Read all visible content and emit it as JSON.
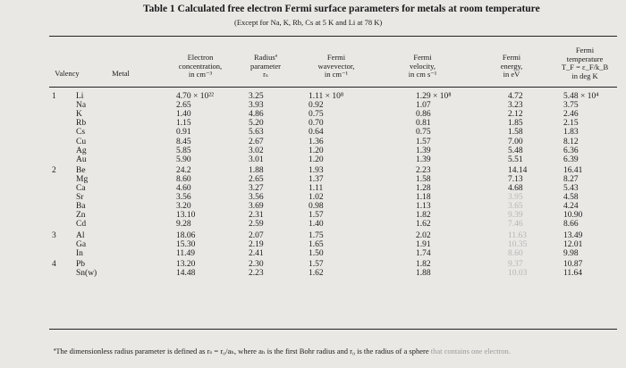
{
  "table": {
    "title": "Table 1  Calculated free electron Fermi surface parameters for metals at room temperature",
    "subtitle": "(Except for Na, K, Rb, Cs at 5 K and Li at 78 K)",
    "headers": [
      {
        "id": "valency",
        "lines": [
          "Valency"
        ]
      },
      {
        "id": "metal",
        "lines": [
          "Metal"
        ]
      },
      {
        "id": "conc",
        "lines": [
          "Electron",
          "concentration,",
          "in cm⁻³"
        ]
      },
      {
        "id": "radius",
        "lines": [
          "Radiusª",
          "parameter",
          "rₛ"
        ]
      },
      {
        "id": "wavevector",
        "lines": [
          "Fermi",
          "wavevector,",
          "in cm⁻¹"
        ]
      },
      {
        "id": "velocity",
        "lines": [
          "Fermi",
          "velocity,",
          "in cm s⁻¹"
        ]
      },
      {
        "id": "energy",
        "lines": [
          "Fermi",
          "energy,",
          "in eV"
        ]
      },
      {
        "id": "temp",
        "lines": [
          "Fermi",
          "temperature",
          "T_F = ε_F/k_B",
          "in deg K"
        ]
      }
    ],
    "groups": [
      {
        "valency": "1",
        "rows": [
          [
            "Li",
            "4.70 × 10²²",
            "3.25",
            "1.11 × 10⁸",
            "1.29 × 10⁸",
            "4.72",
            "5.48 × 10⁴"
          ],
          [
            "Na",
            "2.65",
            "3.93",
            "0.92",
            "1.07",
            "3.23",
            "3.75"
          ],
          [
            "K",
            "1.40",
            "4.86",
            "0.75",
            "0.86",
            "2.12",
            "2.46"
          ],
          [
            "Rb",
            "1.15",
            "5.20",
            "0.70",
            "0.81",
            "1.85",
            "2.15"
          ],
          [
            "Cs",
            "0.91",
            "5.63",
            "0.64",
            "0.75",
            "1.58",
            "1.83"
          ],
          [
            "Cu",
            "8.45",
            "2.67",
            "1.36",
            "1.57",
            "7.00",
            "8.12"
          ],
          [
            "Ag",
            "5.85",
            "3.02",
            "1.20",
            "1.39",
            "5.48",
            "6.36"
          ],
          [
            "Au",
            "5.90",
            "3.01",
            "1.20",
            "1.39",
            "5.51",
            "6.39"
          ]
        ]
      },
      {
        "valency": "2",
        "rows": [
          [
            "Be",
            "24.2",
            "1.88",
            "1.93",
            "2.23",
            "14.14",
            "16.41"
          ],
          [
            "Mg",
            "8.60",
            "2.65",
            "1.37",
            "1.58",
            "7.13",
            "8.27"
          ],
          [
            "Ca",
            "4.60",
            "3.27",
            "1.11",
            "1.28",
            "4.68",
            "5.43"
          ],
          [
            "Sr",
            "3.56",
            "3.56",
            "1.02",
            "1.18",
            "3.95",
            "4.58"
          ],
          [
            "Ba",
            "3.20",
            "3.69",
            "0.98",
            "1.13",
            "3.65",
            "4.24"
          ],
          [
            "Zn",
            "13.10",
            "2.31",
            "1.57",
            "1.82",
            "9.39",
            "10.90"
          ],
          [
            "Cd",
            "9.28",
            "2.59",
            "1.40",
            "1.62",
            "7.46",
            "8.66"
          ]
        ]
      },
      {
        "valency": "3",
        "rows": [
          [
            "Al",
            "18.06",
            "2.07",
            "1.75",
            "2.02",
            "11.63",
            "13.49"
          ],
          [
            "Ga",
            "15.30",
            "2.19",
            "1.65",
            "1.91",
            "10.35",
            "12.01"
          ],
          [
            "In",
            "11.49",
            "2.41",
            "1.50",
            "1.74",
            "8.60",
            "9.98"
          ]
        ]
      },
      {
        "valency": "4",
        "rows": [
          [
            "Pb",
            "13.20",
            "2.30",
            "1.57",
            "1.82",
            "9.37",
            "10.87"
          ],
          [
            "Sn(w)",
            "14.48",
            "2.23",
            "1.62",
            "1.88",
            "10.03",
            "11.64"
          ]
        ]
      }
    ],
    "footnote_main": "ªThe dimensionless radius parameter is defined as rₛ = r₀/aₕ, where aₕ is the first Bohr radius and r₀ is the radius of a sphere",
    "footnote_fade": " that contains one electron."
  }
}
